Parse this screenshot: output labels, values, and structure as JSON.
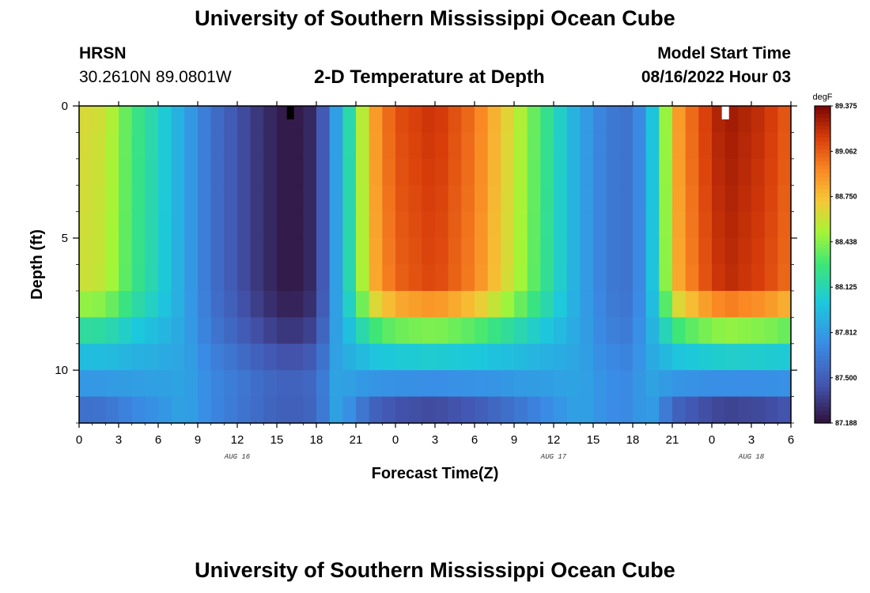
{
  "header": {
    "title": "University of Southern Mississippi Ocean Cube",
    "footer_title": "University of Southern Mississippi Ocean Cube",
    "station": "HRSN",
    "coords": "30.2610N  89.0801W",
    "model_start_label": "Model Start Time",
    "model_start_value": "08/16/2022 Hour 03"
  },
  "chart_data": {
    "type": "heatmap",
    "title": "2-D Temperature at Depth",
    "xlabel": "Forecast Time(Z)",
    "ylabel": "Depth (ft)",
    "colorbar_label": "degF",
    "colorbar_ticks": [
      "89.375",
      "89.062",
      "88.750",
      "88.438",
      "88.125",
      "87.812",
      "87.500",
      "87.188"
    ],
    "value_range": [
      87.188,
      89.375
    ],
    "x_range_hours": [
      0,
      54
    ],
    "y_range_ft": [
      0,
      12
    ],
    "x_tick_labels": [
      "0",
      "3",
      "6",
      "9",
      "12",
      "15",
      "18",
      "21",
      "0",
      "3",
      "6",
      "9",
      "12",
      "15",
      "18",
      "21",
      "0",
      "3",
      "6"
    ],
    "date_labels": [
      {
        "text": "AUG 16",
        "hour": 12
      },
      {
        "text": "AUG 17",
        "hour": 36
      },
      {
        "text": "AUG 18",
        "hour": 51
      }
    ],
    "y_tick_labels": [
      "0",
      "5",
      "10"
    ],
    "y_tick_values": [
      0,
      5,
      10
    ],
    "surface_profile": [
      {
        "hour": 0,
        "temp": 88.65
      },
      {
        "hour": 2,
        "temp": 88.6
      },
      {
        "hour": 4,
        "temp": 88.3
      },
      {
        "hour": 6,
        "temp": 88.1
      },
      {
        "hour": 8,
        "temp": 87.85
      },
      {
        "hour": 10,
        "temp": 87.6
      },
      {
        "hour": 12,
        "temp": 87.45
      },
      {
        "hour": 14,
        "temp": 87.3
      },
      {
        "hour": 16,
        "temp": 87.2
      },
      {
        "hour": 18,
        "temp": 87.3
      },
      {
        "hour": 19,
        "temp": 87.65
      },
      {
        "hour": 20,
        "temp": 88.0
      },
      {
        "hour": 21,
        "temp": 88.3
      },
      {
        "hour": 22,
        "temp": 88.8
      },
      {
        "hour": 24,
        "temp": 89.1
      },
      {
        "hour": 27,
        "temp": 89.2
      },
      {
        "hour": 30,
        "temp": 89.0
      },
      {
        "hour": 33,
        "temp": 88.6
      },
      {
        "hour": 36,
        "temp": 88.15
      },
      {
        "hour": 38,
        "temp": 87.85
      },
      {
        "hour": 40,
        "temp": 87.65
      },
      {
        "hour": 42,
        "temp": 87.6
      },
      {
        "hour": 43,
        "temp": 87.85
      },
      {
        "hour": 44,
        "temp": 88.15
      },
      {
        "hour": 45,
        "temp": 88.8
      },
      {
        "hour": 47,
        "temp": 89.1
      },
      {
        "hour": 49,
        "temp": 89.3
      },
      {
        "hour": 52,
        "temp": 89.2
      },
      {
        "hour": 54,
        "temp": 89.05
      }
    ],
    "depth_profile": [
      {
        "depth": 0,
        "warm_factor": 1.0,
        "cool_factor": 1.0
      },
      {
        "depth": 7,
        "warm_factor": 0.95,
        "cool_factor": 1.0
      },
      {
        "depth": 8,
        "warm_factor": 0.6,
        "cool_factor": 0.9
      },
      {
        "depth": 9,
        "warm_factor": 0.25,
        "cool_factor": 0.75
      },
      {
        "depth": 10,
        "warm_factor": 0.05,
        "cool_factor": 0.55
      },
      {
        "depth": 11,
        "warm_factor": -0.2,
        "cool_factor": 0.5
      },
      {
        "depth": 12,
        "warm_factor": -0.45,
        "cool_factor": 0.6
      }
    ],
    "deep_baseline": 87.85,
    "markers": [
      {
        "hour": 16,
        "depth": 0,
        "color": "#000000"
      },
      {
        "hour": 49,
        "depth": 0,
        "color": "#ffffff"
      }
    ]
  }
}
